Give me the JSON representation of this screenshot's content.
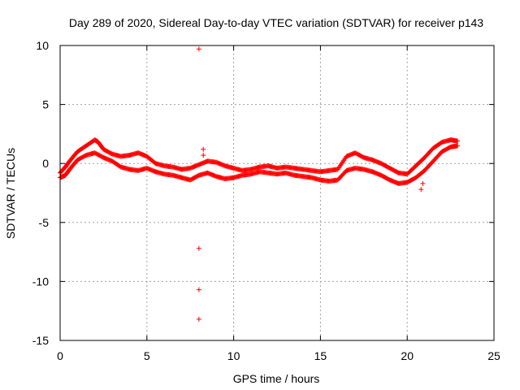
{
  "chart_data": {
    "type": "scatter",
    "title": "Day 289 of 2020, Sidereal Day-to-day VTEC variation (SDTVAR) for receiver p143",
    "xlabel": "GPS time / hours",
    "ylabel": "SDTVAR / TECUs",
    "xlim": [
      0,
      25
    ],
    "ylim": [
      -15,
      10
    ],
    "xticks": [
      0,
      5,
      10,
      15,
      20,
      25
    ],
    "yticks": [
      -15,
      -10,
      -5,
      0,
      5,
      10
    ],
    "xtick_labels": [
      "0",
      "5",
      "10",
      "15",
      "20",
      "25"
    ],
    "ytick_labels": [
      "-15",
      "-10",
      "-5",
      "0",
      "5",
      "10"
    ],
    "grid": true,
    "marker": "+",
    "color": "#ff0000",
    "series": [
      {
        "name": "upper band",
        "x": [
          0.0,
          0.3,
          0.6,
          1.0,
          1.5,
          2.0,
          2.2,
          2.5,
          3.0,
          3.5,
          4.0,
          4.5,
          5.0,
          5.5,
          6.0,
          6.5,
          7.0,
          7.5,
          8.0,
          8.5,
          9.0,
          9.5,
          10.0,
          10.5,
          11.0,
          11.5,
          12.0,
          12.5,
          13.0,
          13.5,
          14.0,
          14.5,
          15.0,
          15.5,
          16.0,
          16.5,
          17.0,
          17.5,
          18.0,
          18.5,
          19.0,
          19.5,
          20.0,
          20.5,
          21.0,
          21.5,
          22.0,
          22.5,
          22.9
        ],
        "y": [
          -0.8,
          -0.3,
          0.3,
          1.0,
          1.5,
          2.0,
          1.8,
          1.2,
          0.8,
          0.6,
          0.7,
          0.9,
          0.6,
          0.0,
          -0.2,
          -0.3,
          -0.5,
          -0.4,
          -0.1,
          0.2,
          0.1,
          -0.2,
          -0.4,
          -0.6,
          -0.5,
          -0.3,
          -0.2,
          -0.4,
          -0.3,
          -0.4,
          -0.5,
          -0.6,
          -0.7,
          -0.6,
          -0.5,
          0.6,
          0.9,
          0.5,
          0.3,
          0.0,
          -0.4,
          -0.8,
          -0.9,
          -0.2,
          0.5,
          1.3,
          1.8,
          2.0,
          1.9
        ]
      },
      {
        "name": "lower band",
        "x": [
          0.0,
          0.3,
          0.6,
          1.0,
          1.5,
          2.0,
          2.5,
          3.0,
          3.5,
          4.0,
          4.5,
          5.0,
          5.5,
          6.0,
          6.5,
          7.0,
          7.5,
          8.0,
          8.5,
          9.0,
          9.5,
          10.0,
          10.5,
          11.0,
          11.5,
          12.0,
          12.5,
          13.0,
          13.5,
          14.0,
          14.5,
          15.0,
          15.5,
          16.0,
          16.5,
          17.0,
          17.5,
          18.0,
          18.5,
          19.0,
          19.5,
          20.0,
          20.5,
          21.0,
          21.5,
          22.0,
          22.5,
          22.9
        ],
        "y": [
          -1.2,
          -1.0,
          -0.4,
          0.3,
          0.7,
          0.9,
          0.5,
          0.2,
          -0.3,
          -0.5,
          -0.6,
          -0.4,
          -0.7,
          -0.9,
          -1.0,
          -1.2,
          -1.4,
          -1.0,
          -0.8,
          -1.1,
          -1.3,
          -1.2,
          -1.0,
          -0.9,
          -0.7,
          -0.8,
          -0.9,
          -0.8,
          -1.0,
          -1.1,
          -1.2,
          -1.4,
          -1.5,
          -1.4,
          -0.6,
          -0.4,
          -0.5,
          -0.7,
          -1.0,
          -1.4,
          -1.7,
          -1.6,
          -1.2,
          -0.6,
          0.2,
          1.0,
          1.4,
          1.5
        ]
      },
      {
        "name": "outliers",
        "x": [
          8.0,
          8.0,
          8.0,
          8.0,
          8.25,
          8.25,
          20.8,
          20.9
        ],
        "y": [
          9.7,
          -7.2,
          -10.7,
          -13.2,
          1.2,
          0.7,
          -2.2,
          -1.7
        ]
      }
    ]
  }
}
